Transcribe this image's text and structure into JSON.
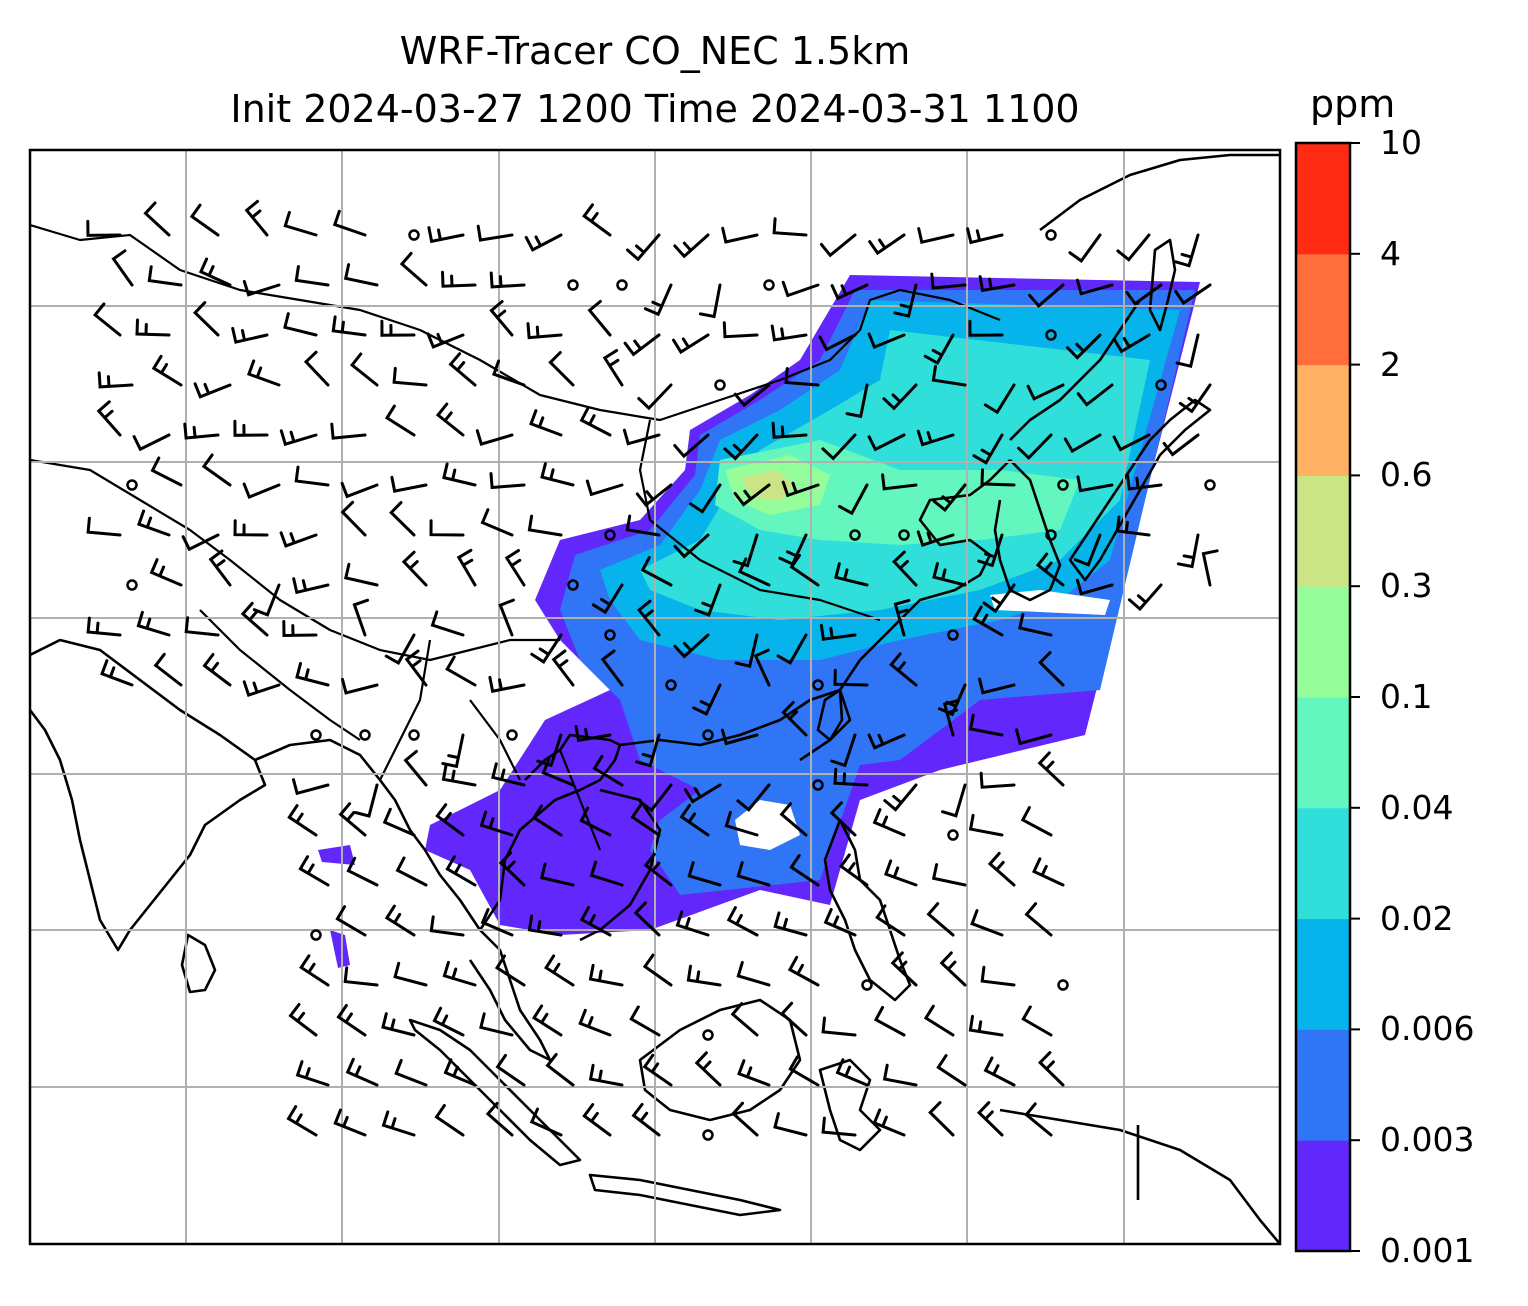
{
  "title": {
    "line1": "WRF-Tracer CO_NEC 1.5km",
    "line2": "Init 2024-03-27 1200 Time 2024-03-31 1100"
  },
  "colorbar": {
    "unit": "ppm",
    "levels": [
      "0.001",
      "0.003",
      "0.006",
      "0.02",
      "0.04",
      "0.1",
      "0.3",
      "0.6",
      "2",
      "4",
      "10"
    ],
    "colors": [
      "#6227fb",
      "#3075f6",
      "#06b4eb",
      "#30deda",
      "#63f6be",
      "#95fd99",
      "#cbe486",
      "#feb162",
      "#ff6e3b",
      "#ff2b15"
    ]
  },
  "map": {
    "graticule": "on",
    "coastline_color": "#000000",
    "wind_barbs": "on"
  }
}
